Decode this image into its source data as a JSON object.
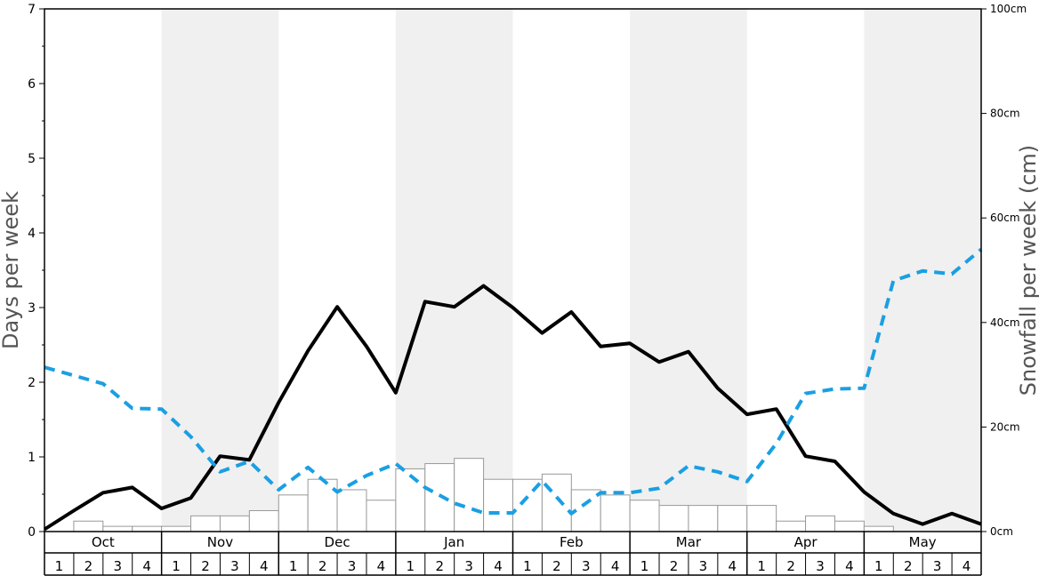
{
  "chart_data": {
    "type": "bar+line",
    "left_axis": {
      "label": "Days per week",
      "range": [
        0,
        7
      ],
      "ticks": [
        0,
        1,
        2,
        3,
        4,
        5,
        6,
        7
      ],
      "minor_step": 0.5
    },
    "right_axis": {
      "label": "Snowfall per week (cm)",
      "range": [
        0,
        100
      ],
      "ticks": [
        0,
        20,
        40,
        60,
        80,
        100
      ],
      "tick_labels": [
        "0cm",
        "20cm",
        "40cm",
        "60cm",
        "80cm",
        "100cm"
      ]
    },
    "months": [
      "Oct",
      "Nov",
      "Dec",
      "Jan",
      "Feb",
      "Mar",
      "Apr",
      "May"
    ],
    "weeks": [
      "1",
      "2",
      "3",
      "4"
    ],
    "shaded_months": [
      "Nov",
      "Jan",
      "Mar",
      "May"
    ],
    "series": [
      {
        "kind": "bar",
        "axis": "left",
        "fill": "#ffffff",
        "stroke": "#999999",
        "values": [
          0.0,
          0.14,
          0.07,
          0.07,
          0.07,
          0.21,
          0.21,
          0.28,
          0.49,
          0.7,
          0.56,
          0.42,
          0.84,
          0.91,
          0.98,
          0.7,
          0.7,
          0.77,
          0.56,
          0.49,
          0.42,
          0.35,
          0.35,
          0.35,
          0.35,
          0.14,
          0.21,
          0.14,
          0.07,
          0.0,
          0.0,
          0.0
        ]
      },
      {
        "kind": "line",
        "axis": "left",
        "color": "#000000",
        "style": "solid",
        "values": [
          0.03,
          0.28,
          0.52,
          0.59,
          0.31,
          0.45,
          1.01,
          0.96,
          1.73,
          2.42,
          3.01,
          2.48,
          1.86,
          3.08,
          3.01,
          3.29,
          3.0,
          2.66,
          2.94,
          2.48,
          2.52,
          2.27,
          2.41,
          1.92,
          1.57,
          1.64,
          1.01,
          0.94,
          0.53,
          0.24,
          0.1,
          0.24,
          0.1
        ]
      },
      {
        "kind": "line",
        "axis": "left",
        "color": "#1a9fe3",
        "style": "dashed",
        "values": [
          2.2,
          2.09,
          1.98,
          1.65,
          1.64,
          1.27,
          0.8,
          0.94,
          0.56,
          0.86,
          0.53,
          0.75,
          0.91,
          0.59,
          0.38,
          0.25,
          0.25,
          0.68,
          0.24,
          0.52,
          0.52,
          0.58,
          0.88,
          0.8,
          0.67,
          1.18,
          1.85,
          1.91,
          1.92,
          3.36,
          3.49,
          3.45,
          3.78
        ]
      }
    ]
  }
}
